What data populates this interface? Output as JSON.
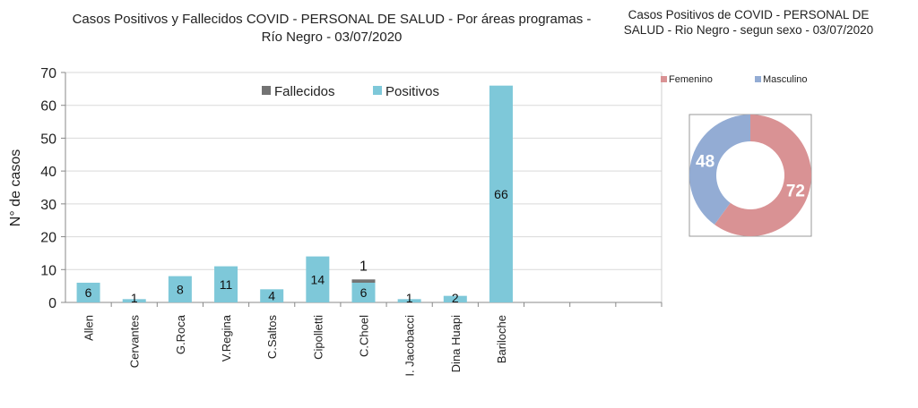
{
  "chart_data": [
    {
      "type": "bar",
      "stacked": true,
      "title": "Casos Positivos y Fallecidos COVID - PERSONAL DE SALUD - Por áreas programas - Río Negro - 03/07/2020",
      "ylabel": "N° de casos",
      "xlabel": "",
      "ylim": [
        0,
        70
      ],
      "yticks": [
        0,
        10,
        20,
        30,
        40,
        50,
        60,
        70
      ],
      "grid": true,
      "legend_position": "top-center",
      "categories": [
        "Allen",
        "Cervantes",
        "G.Roca",
        "V.Regina",
        "C.Saltos",
        "Cipolletti",
        "C.Choel",
        "I. Jacobacci",
        "Dina Huapi",
        "Bariloche",
        "",
        "",
        ""
      ],
      "series": [
        {
          "name": "Positivos",
          "color": "#7ec8d9",
          "values": [
            6,
            1,
            8,
            11,
            4,
            14,
            6,
            1,
            2,
            66,
            0,
            0,
            0
          ],
          "labels": [
            "6",
            "1",
            "8",
            "11",
            "4",
            "14",
            "6",
            "1",
            "2",
            "66",
            "",
            "",
            ""
          ]
        },
        {
          "name": "Fallecidos",
          "color": "#737373",
          "values": [
            0,
            0,
            0,
            0,
            0,
            0,
            1,
            0,
            0,
            0,
            0,
            0,
            0
          ],
          "labels": [
            "",
            "",
            "",
            "",
            "",
            "",
            "1",
            "",
            "",
            "",
            "",
            "",
            ""
          ]
        }
      ],
      "legend_order": [
        "Fallecidos",
        "Positivos"
      ]
    },
    {
      "type": "pie",
      "donut": true,
      "title": "Casos Positivos de COVID - PERSONAL DE SALUD - Rio Negro - segun sexo - 03/07/2020",
      "legend_position": "top",
      "slices": [
        {
          "name": "Femenino",
          "value": 72,
          "color": "#d99294"
        },
        {
          "name": "Masculino",
          "value": 48,
          "color": "#93acd4"
        }
      ]
    }
  ]
}
